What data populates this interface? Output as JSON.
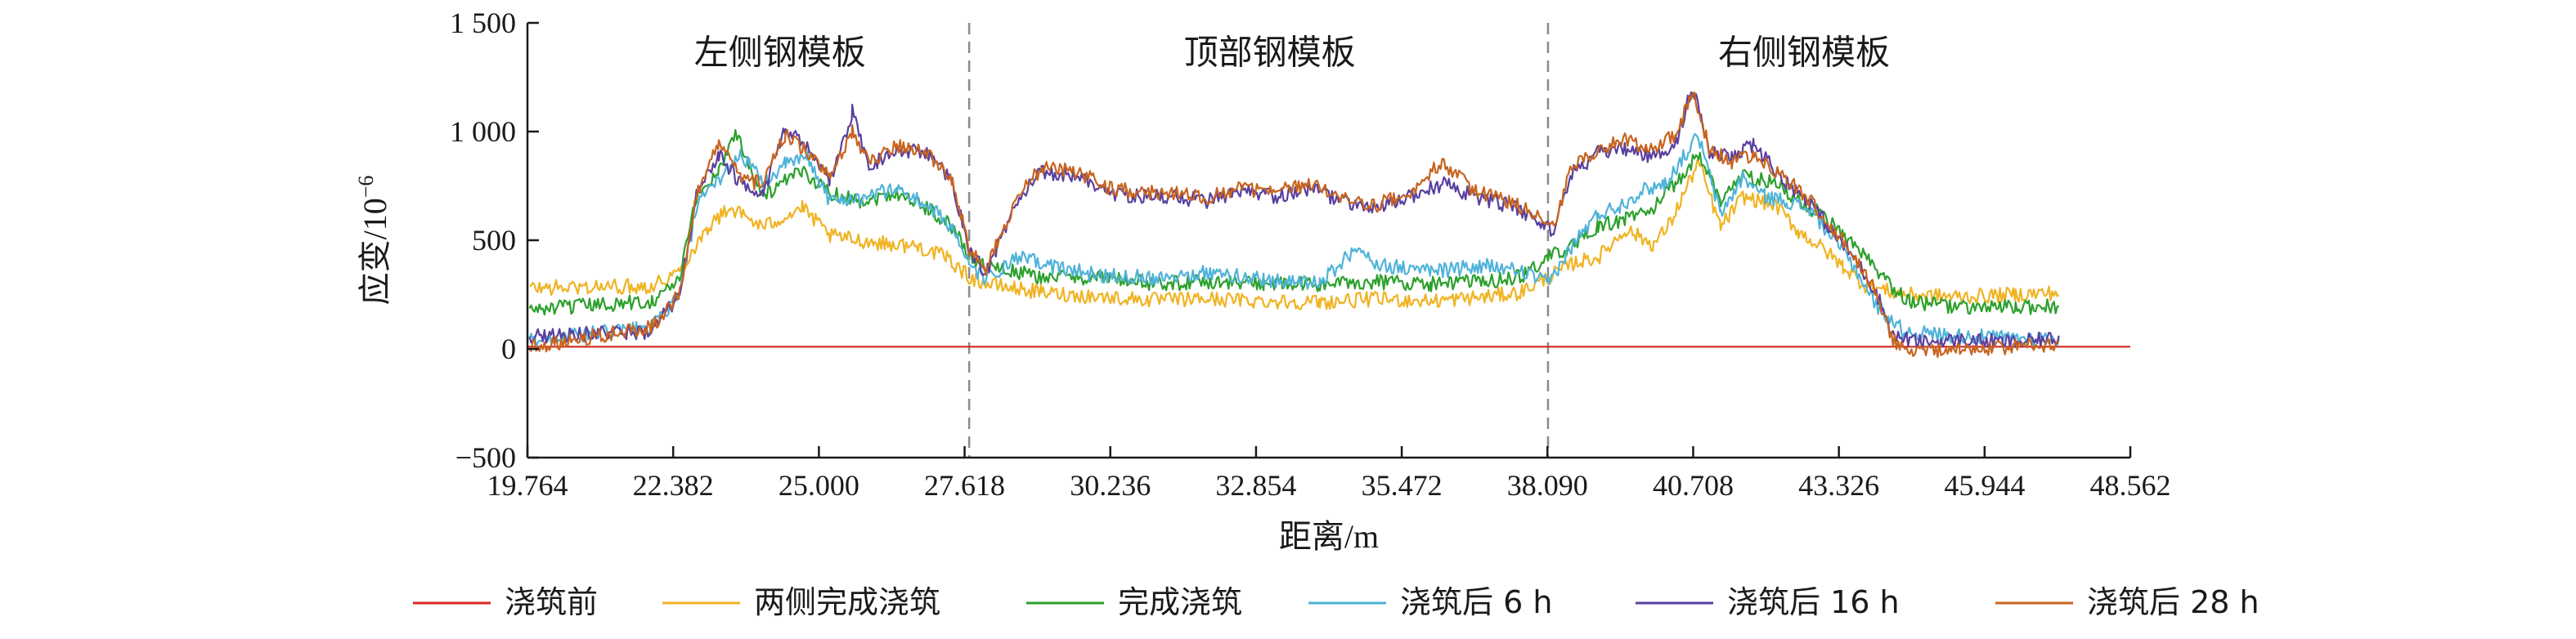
{
  "chart_data": {
    "type": "line",
    "xlabel": "距离/m",
    "ylabel": "应变/10",
    "ylabel_exponent": "−6",
    "xlim": [
      19.764,
      48.562
    ],
    "ylim": [
      -500,
      1500
    ],
    "xticks": [
      19.764,
      22.382,
      25.0,
      27.618,
      30.236,
      32.854,
      35.472,
      38.09,
      40.708,
      43.326,
      45.944,
      48.562
    ],
    "xtick_labels": [
      "19.764",
      "22.382",
      "25.000",
      "27.618",
      "30.236",
      "32.854",
      "35.472",
      "38.090",
      "40.708",
      "43.326",
      "45.944",
      "48.562"
    ],
    "yticks": [
      -500,
      0,
      500,
      1000,
      1500
    ],
    "ytick_labels": [
      "−500",
      "0",
      "500",
      "1 000",
      "1 500"
    ],
    "dividers": [
      27.7,
      38.1
    ],
    "region_labels": [
      {
        "text": "左侧钢模板",
        "x": 24.3,
        "y": 1310
      },
      {
        "text": "顶部钢模板",
        "x": 33.1,
        "y": 1310
      },
      {
        "text": "右侧钢模板",
        "x": 42.7,
        "y": 1310
      }
    ],
    "series": [
      {
        "name": "浇筑前",
        "color": "#d7261e",
        "points": [
          [
            19.764,
            10
          ],
          [
            47.3,
            10
          ],
          [
            48.562,
            10
          ]
        ]
      },
      {
        "name": "两侧完成浇筑",
        "color": "#f0b323",
        "points": [
          [
            19.8,
            280
          ],
          [
            22.0,
            290
          ],
          [
            22.5,
            360
          ],
          [
            23.0,
            560
          ],
          [
            23.4,
            650
          ],
          [
            24.0,
            560
          ],
          [
            24.7,
            650
          ],
          [
            25.2,
            520
          ],
          [
            26.0,
            490
          ],
          [
            26.8,
            470
          ],
          [
            27.3,
            420
          ],
          [
            27.7,
            330
          ],
          [
            28.0,
            300
          ],
          [
            29.0,
            260
          ],
          [
            30.0,
            240
          ],
          [
            31.0,
            225
          ],
          [
            32.0,
            230
          ],
          [
            33.0,
            220
          ],
          [
            34.0,
            215
          ],
          [
            35.0,
            230
          ],
          [
            36.0,
            220
          ],
          [
            37.0,
            240
          ],
          [
            37.6,
            260
          ],
          [
            38.1,
            330
          ],
          [
            38.6,
            400
          ],
          [
            39.0,
            420
          ],
          [
            39.5,
            550
          ],
          [
            40.0,
            480
          ],
          [
            40.3,
            580
          ],
          [
            40.8,
            860
          ],
          [
            41.2,
            560
          ],
          [
            41.6,
            700
          ],
          [
            42.2,
            660
          ],
          [
            42.6,
            540
          ],
          [
            43.0,
            470
          ],
          [
            43.4,
            380
          ],
          [
            43.8,
            290
          ],
          [
            44.5,
            250
          ],
          [
            45.5,
            240
          ],
          [
            46.5,
            250
          ],
          [
            47.3,
            260
          ]
        ]
      },
      {
        "name": "完成浇筑",
        "color": "#2ca02c",
        "points": [
          [
            19.8,
            180
          ],
          [
            22.0,
            220
          ],
          [
            22.5,
            320
          ],
          [
            22.8,
            700
          ],
          [
            23.2,
            820
          ],
          [
            23.5,
            1000
          ],
          [
            24.0,
            700
          ],
          [
            24.7,
            820
          ],
          [
            25.2,
            720
          ],
          [
            25.8,
            680
          ],
          [
            26.4,
            720
          ],
          [
            27.0,
            640
          ],
          [
            27.4,
            560
          ],
          [
            27.7,
            430
          ],
          [
            28.0,
            380
          ],
          [
            29.0,
            330
          ],
          [
            30.0,
            330
          ],
          [
            31.0,
            300
          ],
          [
            32.0,
            310
          ],
          [
            33.0,
            300
          ],
          [
            34.0,
            295
          ],
          [
            35.0,
            310
          ],
          [
            36.0,
            300
          ],
          [
            37.0,
            310
          ],
          [
            37.6,
            330
          ],
          [
            38.1,
            420
          ],
          [
            38.6,
            480
          ],
          [
            39.0,
            560
          ],
          [
            39.5,
            600
          ],
          [
            40.0,
            650
          ],
          [
            40.4,
            760
          ],
          [
            40.8,
            900
          ],
          [
            41.2,
            680
          ],
          [
            41.6,
            800
          ],
          [
            42.2,
            760
          ],
          [
            42.6,
            680
          ],
          [
            43.0,
            620
          ],
          [
            43.4,
            520
          ],
          [
            43.8,
            420
          ],
          [
            44.2,
            300
          ],
          [
            44.6,
            220
          ],
          [
            45.5,
            190
          ],
          [
            46.5,
            190
          ],
          [
            47.3,
            200
          ]
        ]
      },
      {
        "name": "浇筑后 6 h",
        "color": "#4fb3d9",
        "points": [
          [
            19.8,
            40
          ],
          [
            22.0,
            100
          ],
          [
            22.5,
            250
          ],
          [
            22.8,
            650
          ],
          [
            23.2,
            780
          ],
          [
            23.6,
            900
          ],
          [
            24.0,
            760
          ],
          [
            24.4,
            850
          ],
          [
            24.8,
            880
          ],
          [
            25.2,
            680
          ],
          [
            25.8,
            700
          ],
          [
            26.4,
            740
          ],
          [
            27.0,
            650
          ],
          [
            27.4,
            560
          ],
          [
            27.7,
            380
          ],
          [
            28.0,
            320
          ],
          [
            28.6,
            420
          ],
          [
            29.2,
            380
          ],
          [
            30.0,
            340
          ],
          [
            31.0,
            330
          ],
          [
            32.0,
            350
          ],
          [
            33.0,
            320
          ],
          [
            34.0,
            300
          ],
          [
            34.6,
            450
          ],
          [
            35.2,
            380
          ],
          [
            36.0,
            360
          ],
          [
            37.0,
            380
          ],
          [
            37.6,
            360
          ],
          [
            38.1,
            300
          ],
          [
            38.6,
            500
          ],
          [
            39.0,
            620
          ],
          [
            39.4,
            660
          ],
          [
            39.8,
            730
          ],
          [
            40.2,
            760
          ],
          [
            40.8,
            980
          ],
          [
            41.2,
            620
          ],
          [
            41.6,
            790
          ],
          [
            42.0,
            700
          ],
          [
            42.4,
            680
          ],
          [
            42.8,
            640
          ],
          [
            43.2,
            520
          ],
          [
            43.6,
            380
          ],
          [
            44.0,
            200
          ],
          [
            44.5,
            80
          ],
          [
            45.5,
            60
          ],
          [
            46.5,
            50
          ],
          [
            47.3,
            50
          ]
        ]
      },
      {
        "name": "浇筑后 16 h",
        "color": "#5a3fa0",
        "points": [
          [
            19.8,
            60
          ],
          [
            22.0,
            80
          ],
          [
            22.5,
            250
          ],
          [
            22.8,
            700
          ],
          [
            23.2,
            900
          ],
          [
            23.6,
            760
          ],
          [
            24.0,
            720
          ],
          [
            24.4,
            1010
          ],
          [
            24.8,
            920
          ],
          [
            25.2,
            760
          ],
          [
            25.6,
            1090
          ],
          [
            25.9,
            840
          ],
          [
            26.4,
            920
          ],
          [
            27.0,
            900
          ],
          [
            27.4,
            760
          ],
          [
            27.7,
            450
          ],
          [
            28.0,
            350
          ],
          [
            28.6,
            700
          ],
          [
            29.0,
            810
          ],
          [
            29.6,
            800
          ],
          [
            30.2,
            720
          ],
          [
            30.8,
            700
          ],
          [
            31.4,
            700
          ],
          [
            32.0,
            680
          ],
          [
            32.6,
            720
          ],
          [
            33.2,
            700
          ],
          [
            33.8,
            740
          ],
          [
            34.4,
            680
          ],
          [
            35.0,
            640
          ],
          [
            35.6,
            700
          ],
          [
            36.2,
            760
          ],
          [
            36.8,
            700
          ],
          [
            37.4,
            660
          ],
          [
            38.0,
            580
          ],
          [
            38.2,
            540
          ],
          [
            38.5,
            800
          ],
          [
            39.0,
            900
          ],
          [
            39.5,
            920
          ],
          [
            40.0,
            880
          ],
          [
            40.4,
            950
          ],
          [
            40.7,
            1210
          ],
          [
            41.0,
            900
          ],
          [
            41.4,
            880
          ],
          [
            41.8,
            940
          ],
          [
            42.4,
            760
          ],
          [
            42.8,
            680
          ],
          [
            43.2,
            540
          ],
          [
            43.6,
            420
          ],
          [
            44.0,
            260
          ],
          [
            44.3,
            60
          ],
          [
            44.8,
            30
          ],
          [
            45.5,
            40
          ],
          [
            46.5,
            30
          ],
          [
            47.3,
            50
          ]
        ]
      },
      {
        "name": "浇筑后 28 h",
        "color": "#c8641f",
        "points": [
          [
            19.8,
            10
          ],
          [
            22.0,
            100
          ],
          [
            22.5,
            260
          ],
          [
            22.8,
            700
          ],
          [
            23.2,
            950
          ],
          [
            23.6,
            780
          ],
          [
            24.0,
            760
          ],
          [
            24.4,
            990
          ],
          [
            24.8,
            900
          ],
          [
            25.2,
            780
          ],
          [
            25.6,
            1000
          ],
          [
            25.9,
            860
          ],
          [
            26.4,
            940
          ],
          [
            27.0,
            890
          ],
          [
            27.4,
            780
          ],
          [
            27.7,
            460
          ],
          [
            28.0,
            360
          ],
          [
            28.6,
            720
          ],
          [
            29.0,
            830
          ],
          [
            29.6,
            820
          ],
          [
            30.2,
            740
          ],
          [
            30.8,
            720
          ],
          [
            31.4,
            720
          ],
          [
            32.0,
            700
          ],
          [
            32.6,
            740
          ],
          [
            33.2,
            720
          ],
          [
            33.8,
            760
          ],
          [
            34.4,
            700
          ],
          [
            35.0,
            660
          ],
          [
            35.6,
            720
          ],
          [
            36.2,
            860
          ],
          [
            36.8,
            720
          ],
          [
            37.4,
            680
          ],
          [
            38.0,
            600
          ],
          [
            38.2,
            560
          ],
          [
            38.5,
            820
          ],
          [
            39.0,
            920
          ],
          [
            39.5,
            960
          ],
          [
            40.0,
            920
          ],
          [
            40.4,
            990
          ],
          [
            40.7,
            1180
          ],
          [
            41.0,
            920
          ],
          [
            41.4,
            860
          ],
          [
            41.8,
            900
          ],
          [
            42.4,
            780
          ],
          [
            42.8,
            690
          ],
          [
            43.2,
            560
          ],
          [
            43.6,
            430
          ],
          [
            44.0,
            260
          ],
          [
            44.3,
            40
          ],
          [
            44.8,
            -20
          ],
          [
            45.5,
            0
          ],
          [
            46.5,
            10
          ],
          [
            47.3,
            20
          ]
        ]
      }
    ],
    "legend_position": "bottom"
  }
}
